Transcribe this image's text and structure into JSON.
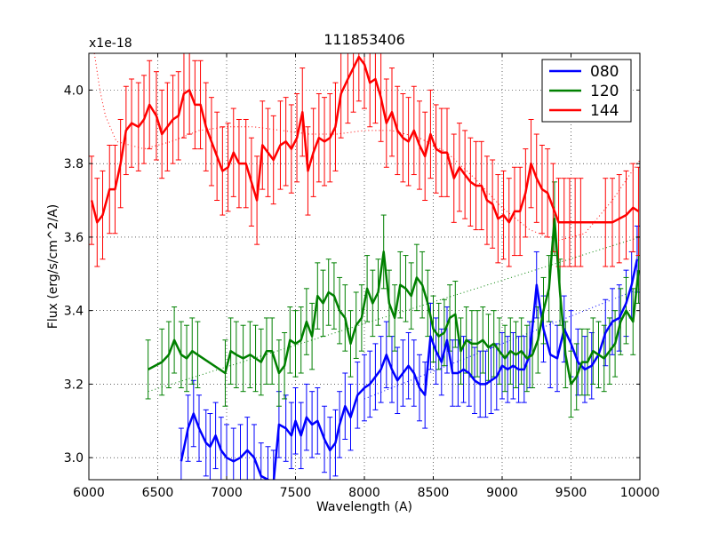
{
  "chart_data": {
    "type": "line",
    "title": "111853406",
    "xlabel": "Wavelength (A)",
    "ylabel": "Flux (erg/s/cm^2/A)",
    "offset_label": "x1e-18",
    "xlim": [
      6000,
      10000
    ],
    "ylim": [
      2.94,
      4.1
    ],
    "x_ticks": [
      6000,
      6500,
      7000,
      7500,
      8000,
      8500,
      9000,
      9500,
      10000
    ],
    "y_ticks": [
      3.0,
      3.2,
      3.4,
      3.6,
      3.8,
      4.0
    ],
    "grid": true,
    "legend_position": "top-right",
    "series": [
      {
        "name": "080",
        "color": "#0000ff",
        "x": [
          6670,
          6720,
          6760,
          6800,
          6850,
          6880,
          6920,
          6960,
          7000,
          7050,
          7100,
          7150,
          7200,
          7250,
          7300,
          7340,
          7380,
          7430,
          7470,
          7500,
          7540,
          7580,
          7620,
          7660,
          7710,
          7750,
          7790,
          7820,
          7860,
          7900,
          7950,
          8000,
          8040,
          8080,
          8120,
          8160,
          8200,
          8240,
          8280,
          8320,
          8360,
          8400,
          8440,
          8480,
          8520,
          8560,
          8600,
          8640,
          8680,
          8720,
          8760,
          8800,
          8840,
          8880,
          8920,
          8960,
          9000,
          9040,
          9080,
          9120,
          9160,
          9200,
          9250,
          9300,
          9350,
          9400,
          9450,
          9500,
          9550,
          9600,
          9650,
          9700,
          9750,
          9800,
          9850,
          9900,
          9940,
          9980
        ],
        "y": [
          2.99,
          3.08,
          3.12,
          3.08,
          3.04,
          3.03,
          3.06,
          3.02,
          3.0,
          2.99,
          3.0,
          3.02,
          3.0,
          2.95,
          2.94,
          2.93,
          3.09,
          3.08,
          3.06,
          3.1,
          3.06,
          3.11,
          3.09,
          3.1,
          3.05,
          3.02,
          3.04,
          3.09,
          3.14,
          3.11,
          3.17,
          3.19,
          3.2,
          3.22,
          3.24,
          3.28,
          3.24,
          3.21,
          3.23,
          3.25,
          3.23,
          3.19,
          3.17,
          3.33,
          3.29,
          3.26,
          3.32,
          3.23,
          3.23,
          3.24,
          3.23,
          3.21,
          3.2,
          3.2,
          3.21,
          3.22,
          3.25,
          3.24,
          3.25,
          3.24,
          3.24,
          3.28,
          3.47,
          3.35,
          3.28,
          3.27,
          3.35,
          3.31,
          3.26,
          3.24,
          3.25,
          3.28,
          3.34,
          3.37,
          3.38,
          3.42,
          3.47,
          3.54
        ],
        "err": [
          0.09,
          0.09,
          0.09,
          0.09,
          0.09,
          0.09,
          0.09,
          0.09,
          0.09,
          0.09,
          0.09,
          0.09,
          0.09,
          0.09,
          0.09,
          0.09,
          0.09,
          0.09,
          0.09,
          0.09,
          0.09,
          0.09,
          0.09,
          0.09,
          0.09,
          0.09,
          0.09,
          0.09,
          0.09,
          0.09,
          0.09,
          0.09,
          0.09,
          0.09,
          0.09,
          0.09,
          0.09,
          0.09,
          0.09,
          0.09,
          0.09,
          0.09,
          0.09,
          0.09,
          0.09,
          0.09,
          0.09,
          0.09,
          0.09,
          0.09,
          0.09,
          0.09,
          0.09,
          0.09,
          0.09,
          0.09,
          0.09,
          0.09,
          0.09,
          0.09,
          0.09,
          0.09,
          0.09,
          0.09,
          0.09,
          0.09,
          0.09,
          0.09,
          0.09,
          0.09,
          0.09,
          0.09,
          0.09,
          0.09,
          0.09,
          0.09,
          0.09,
          0.09
        ],
        "trend": {
          "x": [
            8000,
            10000
          ],
          "y": [
            3.16,
            3.46
          ]
        }
      },
      {
        "name": "120",
        "color": "#008000",
        "x": [
          6430,
          6530,
          6580,
          6620,
          6670,
          6710,
          6750,
          6790,
          6990,
          7030,
          7070,
          7120,
          7170,
          7210,
          7250,
          7290,
          7330,
          7380,
          7420,
          7460,
          7500,
          7540,
          7580,
          7620,
          7660,
          7700,
          7740,
          7780,
          7820,
          7860,
          7900,
          7940,
          7980,
          8020,
          8060,
          8100,
          8140,
          8180,
          8220,
          8260,
          8300,
          8340,
          8380,
          8420,
          8460,
          8500,
          8540,
          8580,
          8620,
          8660,
          8700,
          8740,
          8780,
          8820,
          8860,
          8900,
          8940,
          8980,
          9020,
          9060,
          9100,
          9140,
          9180,
          9220,
          9260,
          9300,
          9340,
          9380,
          9420,
          9460,
          9500,
          9540,
          9580,
          9620,
          9660,
          9700,
          9740,
          9780,
          9820,
          9860,
          9900,
          9950,
          9990
        ],
        "y": [
          3.24,
          3.26,
          3.28,
          3.32,
          3.28,
          3.27,
          3.29,
          3.28,
          3.23,
          3.29,
          3.28,
          3.27,
          3.28,
          3.27,
          3.26,
          3.29,
          3.29,
          3.23,
          3.25,
          3.32,
          3.31,
          3.32,
          3.37,
          3.33,
          3.44,
          3.42,
          3.45,
          3.44,
          3.4,
          3.38,
          3.31,
          3.36,
          3.38,
          3.46,
          3.42,
          3.45,
          3.56,
          3.42,
          3.38,
          3.47,
          3.46,
          3.44,
          3.49,
          3.47,
          3.42,
          3.35,
          3.33,
          3.34,
          3.38,
          3.39,
          3.29,
          3.32,
          3.31,
          3.31,
          3.32,
          3.3,
          3.31,
          3.29,
          3.27,
          3.29,
          3.28,
          3.29,
          3.27,
          3.28,
          3.32,
          3.4,
          3.46,
          3.65,
          3.45,
          3.28,
          3.2,
          3.22,
          3.26,
          3.26,
          3.29,
          3.28,
          3.27,
          3.29,
          3.31,
          3.37,
          3.4,
          3.37,
          3.51
        ],
        "err": [
          0.08,
          0.09,
          0.09,
          0.09,
          0.09,
          0.09,
          0.09,
          0.09,
          0.09,
          0.09,
          0.09,
          0.09,
          0.09,
          0.09,
          0.09,
          0.09,
          0.09,
          0.09,
          0.09,
          0.09,
          0.09,
          0.09,
          0.09,
          0.09,
          0.09,
          0.09,
          0.09,
          0.09,
          0.09,
          0.09,
          0.09,
          0.09,
          0.09,
          0.09,
          0.09,
          0.09,
          0.1,
          0.09,
          0.09,
          0.09,
          0.09,
          0.09,
          0.09,
          0.09,
          0.09,
          0.09,
          0.09,
          0.09,
          0.09,
          0.09,
          0.09,
          0.09,
          0.09,
          0.09,
          0.09,
          0.09,
          0.09,
          0.09,
          0.09,
          0.09,
          0.09,
          0.09,
          0.09,
          0.09,
          0.09,
          0.09,
          0.09,
          0.1,
          0.09,
          0.09,
          0.09,
          0.09,
          0.09,
          0.09,
          0.09,
          0.09,
          0.09,
          0.09,
          0.09,
          0.09,
          0.09,
          0.09,
          0.09
        ],
        "trend": {
          "x": [
            6430,
            10000
          ],
          "y": [
            3.18,
            3.6
          ]
        }
      },
      {
        "name": "144",
        "color": "#ff0000",
        "x": [
          6020,
          6060,
          6100,
          6150,
          6190,
          6230,
          6270,
          6310,
          6360,
          6400,
          6440,
          6490,
          6530,
          6570,
          6610,
          6650,
          6690,
          6730,
          6770,
          6810,
          6850,
          6890,
          6930,
          6970,
          7010,
          7050,
          7090,
          7140,
          7180,
          7220,
          7260,
          7300,
          7340,
          7390,
          7430,
          7470,
          7510,
          7550,
          7590,
          7630,
          7670,
          7710,
          7750,
          7790,
          7830,
          7880,
          7920,
          7960,
          8000,
          8040,
          8080,
          8120,
          8160,
          8200,
          8240,
          8280,
          8320,
          8360,
          8400,
          8440,
          8480,
          8520,
          8560,
          8600,
          8650,
          8690,
          8730,
          8770,
          8810,
          8850,
          8890,
          8930,
          8970,
          9010,
          9050,
          9090,
          9130,
          9170,
          9210,
          9250,
          9290,
          9330,
          9370,
          9410,
          9450,
          9490,
          9530,
          9570,
          9750,
          9800,
          9850,
          9900,
          9950,
          9990
        ],
        "y": [
          3.7,
          3.64,
          3.66,
          3.73,
          3.73,
          3.8,
          3.89,
          3.91,
          3.9,
          3.92,
          3.96,
          3.93,
          3.88,
          3.9,
          3.92,
          3.93,
          3.99,
          4.0,
          3.96,
          3.96,
          3.9,
          3.86,
          3.82,
          3.78,
          3.79,
          3.83,
          3.8,
          3.8,
          3.75,
          3.7,
          3.85,
          3.83,
          3.81,
          3.85,
          3.86,
          3.84,
          3.87,
          3.94,
          3.78,
          3.83,
          3.87,
          3.86,
          3.87,
          3.9,
          3.99,
          4.03,
          4.06,
          4.09,
          4.07,
          4.02,
          4.03,
          3.98,
          3.91,
          3.94,
          3.89,
          3.87,
          3.86,
          3.89,
          3.85,
          3.82,
          3.88,
          3.84,
          3.83,
          3.83,
          3.76,
          3.79,
          3.77,
          3.75,
          3.74,
          3.74,
          3.7,
          3.69,
          3.65,
          3.66,
          3.64,
          3.67,
          3.67,
          3.72,
          3.8,
          3.76,
          3.73,
          3.72,
          3.68,
          3.64,
          3.64,
          3.64,
          3.64,
          3.64,
          3.64,
          3.64,
          3.65,
          3.66,
          3.68,
          3.67
        ],
        "err": [
          0.12,
          0.12,
          0.12,
          0.12,
          0.12,
          0.12,
          0.12,
          0.12,
          0.12,
          0.12,
          0.12,
          0.12,
          0.12,
          0.12,
          0.12,
          0.12,
          0.12,
          0.12,
          0.12,
          0.12,
          0.12,
          0.12,
          0.12,
          0.12,
          0.12,
          0.12,
          0.12,
          0.12,
          0.12,
          0.12,
          0.12,
          0.12,
          0.12,
          0.12,
          0.12,
          0.12,
          0.12,
          0.12,
          0.12,
          0.12,
          0.12,
          0.12,
          0.12,
          0.12,
          0.12,
          0.12,
          0.12,
          0.12,
          0.12,
          0.12,
          0.12,
          0.12,
          0.12,
          0.12,
          0.12,
          0.12,
          0.12,
          0.12,
          0.12,
          0.12,
          0.12,
          0.12,
          0.12,
          0.12,
          0.12,
          0.12,
          0.12,
          0.12,
          0.12,
          0.12,
          0.12,
          0.12,
          0.12,
          0.12,
          0.12,
          0.12,
          0.12,
          0.12,
          0.12,
          0.12,
          0.12,
          0.12,
          0.12,
          0.12,
          0.12,
          0.12,
          0.12,
          0.12,
          0.12,
          0.12,
          0.12,
          0.12,
          0.12,
          0.12
        ],
        "trend": {
          "x": [
            6040,
            6080,
            6120,
            6200,
            6400,
            6600,
            6800,
            7000,
            7200,
            7400,
            7600,
            7800,
            8000,
            8200,
            8400,
            8600,
            8800,
            9000,
            9200,
            9400,
            9600,
            9800,
            10000
          ],
          "y": [
            4.1,
            4.0,
            3.93,
            3.86,
            3.84,
            3.86,
            3.89,
            3.9,
            3.9,
            3.89,
            3.88,
            3.88,
            3.89,
            3.89,
            3.87,
            3.83,
            3.76,
            3.68,
            3.62,
            3.59,
            3.61,
            3.7,
            3.81
          ]
        }
      }
    ]
  }
}
